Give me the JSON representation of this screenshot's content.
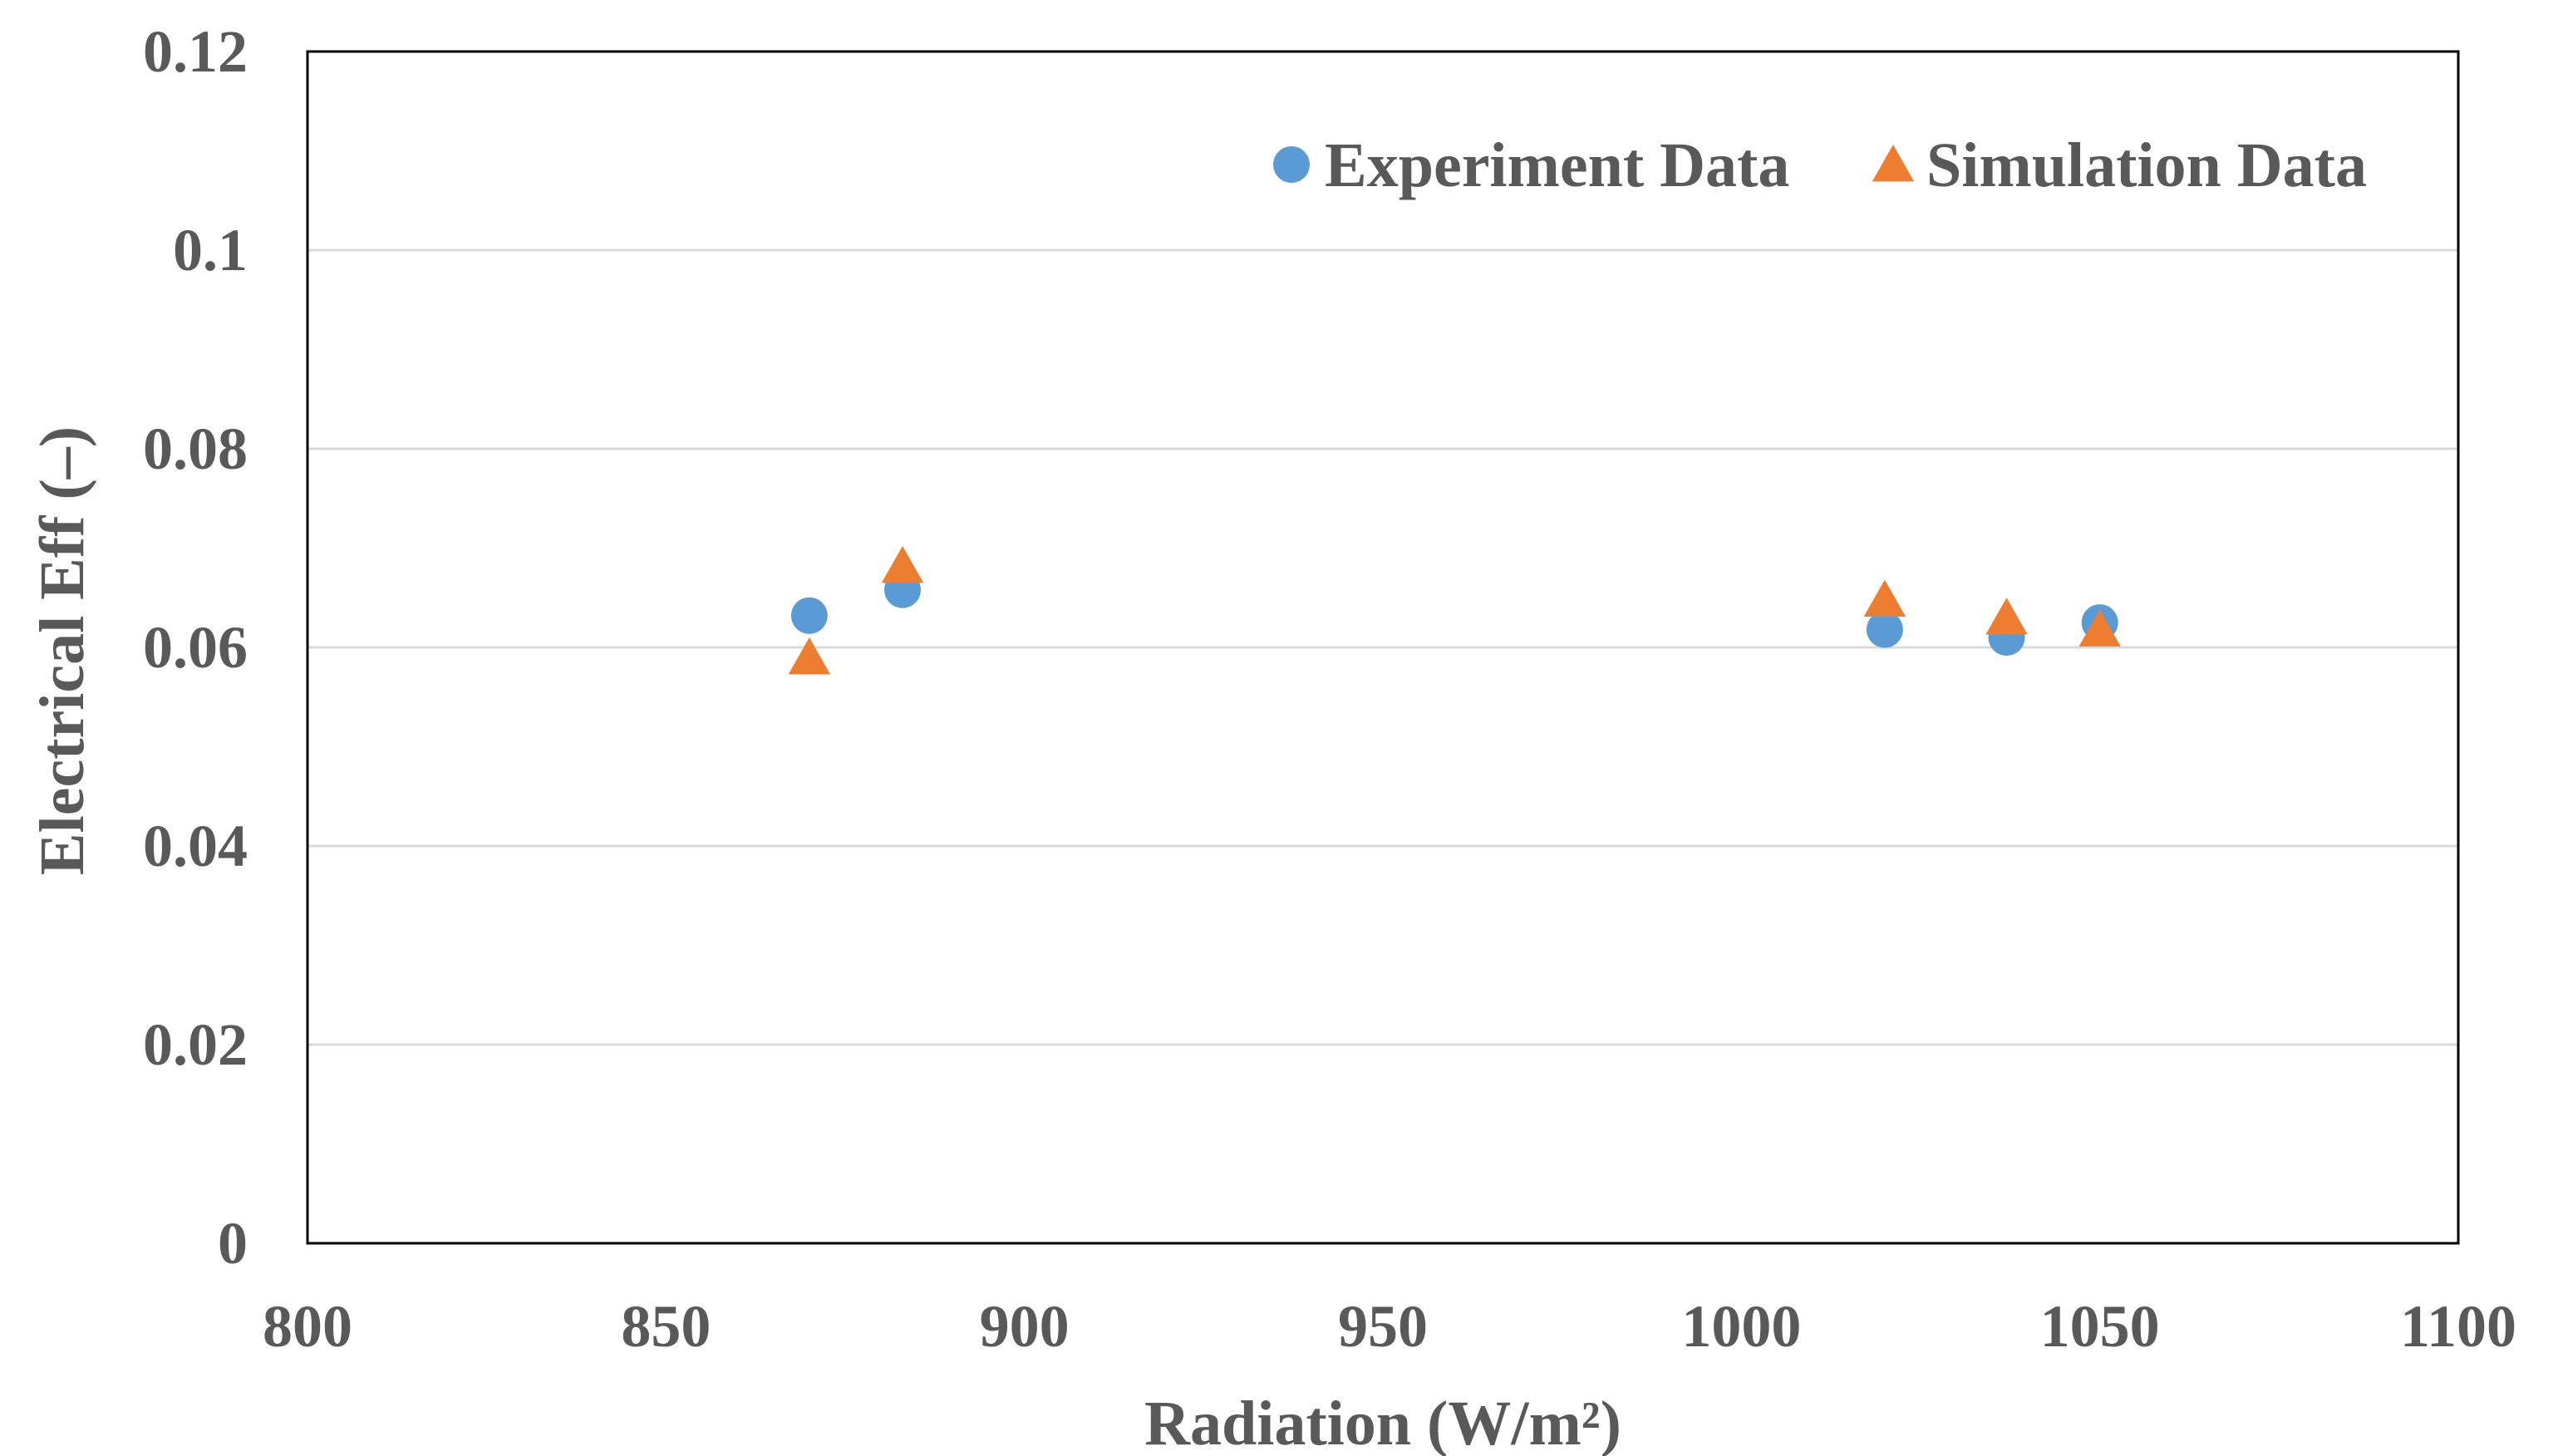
{
  "chart_data": {
    "type": "scatter",
    "title": "",
    "xlabel": "Radiation (W/m²)",
    "ylabel": "Electrical Eff (–)",
    "xlim": [
      800,
      1100
    ],
    "ylim": [
      0,
      0.12
    ],
    "xticks": [
      800,
      850,
      900,
      950,
      1000,
      1050,
      1100
    ],
    "yticks": [
      0,
      0.02,
      0.04,
      0.06,
      0.08,
      0.1,
      0.12
    ],
    "xtick_labels": [
      "800",
      "850",
      "900",
      "950",
      "1000",
      "1050",
      "1100"
    ],
    "ytick_labels": [
      "0",
      "0.02",
      "0.04",
      "0.06",
      "0.08",
      "0.1",
      "0.12"
    ],
    "grid": "horizontal",
    "legend_position": "top-right",
    "series": [
      {
        "name": "Experiment Data",
        "marker": "circle",
        "color": "#5b9bd5",
        "points": [
          {
            "x": 870,
            "y": 0.0632
          },
          {
            "x": 883,
            "y": 0.0658
          },
          {
            "x": 1020,
            "y": 0.0618
          },
          {
            "x": 1037,
            "y": 0.061
          },
          {
            "x": 1050,
            "y": 0.0625
          }
        ]
      },
      {
        "name": "Simulation Data",
        "marker": "triangle",
        "color": "#ed7d31",
        "points": [
          {
            "x": 870,
            "y": 0.059
          },
          {
            "x": 883,
            "y": 0.0682
          },
          {
            "x": 1020,
            "y": 0.0648
          },
          {
            "x": 1037,
            "y": 0.063
          },
          {
            "x": 1050,
            "y": 0.0618
          }
        ]
      }
    ]
  }
}
